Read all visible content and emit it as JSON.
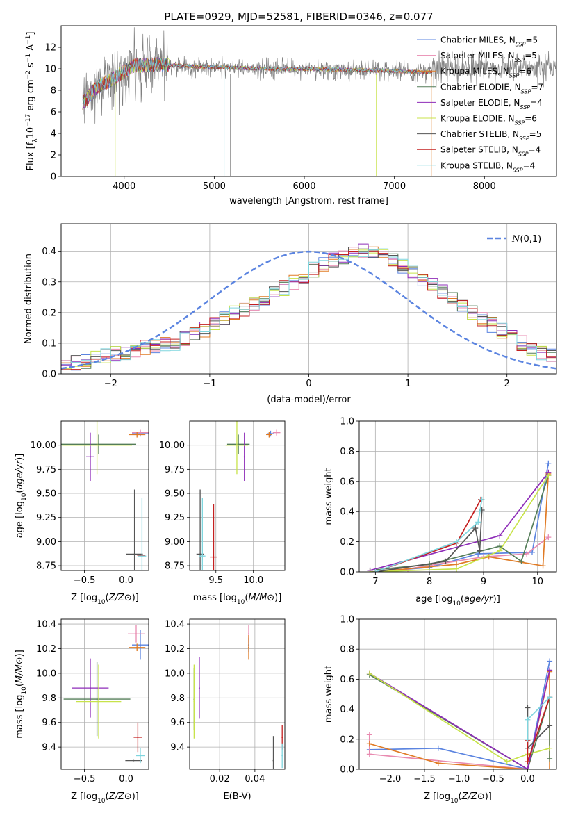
{
  "title": "PLATE=0929, MJD=52581, FIBERID=0346, z=0.077",
  "legend_names": [
    "Chabrier MILES, N_SSP=5",
    "Salpeter MILES, N_SSP=5",
    "Kroupa MILES, N_SSP=6",
    "Chabrier ELODIE, N_SSP=7",
    "Salpeter ELODIE, N_SSP=4",
    "Kroupa ELODIE, N_SSP=6",
    "Chabrier STELIB, N_SSP=5",
    "Salpeter STELIB, N_SSP=4",
    "Kroupa STELIB, N_SSP=4"
  ],
  "model_colors": [
    "#5b84e0",
    "#e88ab0",
    "#e07b25",
    "#547d58",
    "#8e2cb8",
    "#c8e34a",
    "#555555",
    "#c42020",
    "#7fd5de"
  ],
  "colors": {
    "data_line": "#808080",
    "grid": "#b0b0b0",
    "normal_curve": "#5b84e0"
  },
  "chart_data": [
    {
      "id": "spectrum",
      "type": "line",
      "xlabel": "wavelength [Angstrom, rest frame]",
      "ylabel": "Flux [f_λ 10^-17 erg cm^-2 s^-1 A^-1]",
      "xlim": [
        3300,
        8800
      ],
      "ylim": [
        0,
        14
      ],
      "xticks": [
        4000,
        5000,
        6000,
        7000,
        8000
      ],
      "yticks": [
        0,
        2,
        4,
        6,
        8,
        10,
        12
      ],
      "grid": false,
      "legend_position": "top-right",
      "continuum": {
        "x": [
          3540,
          3700,
          3900,
          4100,
          4400,
          4800,
          5200,
          5600,
          6000,
          6500,
          7000,
          7300,
          7420
        ],
        "y": [
          6.8,
          8.3,
          9.2,
          10.3,
          10.4,
          10.2,
          10.1,
          10.0,
          10.0,
          9.9,
          9.8,
          9.7,
          9.7
        ]
      },
      "noisy_region": [
        3540,
        4500
      ],
      "dropouts": [
        3900,
        5110,
        5180,
        6800,
        7410
      ]
    },
    {
      "id": "residuals",
      "type": "histogram",
      "xlabel": "(data-model)/error",
      "ylabel": "Normed distribution",
      "xlim": [
        -2.5,
        2.5
      ],
      "ylim": [
        0,
        0.49
      ],
      "xticks": [
        -2,
        -1,
        0,
        1,
        2
      ],
      "yticks": [
        0,
        0.1,
        0.2,
        0.3,
        0.4
      ],
      "grid": true,
      "legend_position": "top-right",
      "reference_label": "N(0,1)",
      "bin_width": 0.1,
      "base_values": [
        0.03,
        0.035,
        0.04,
        0.05,
        0.06,
        0.065,
        0.07,
        0.08,
        0.085,
        0.09,
        0.095,
        0.1,
        0.115,
        0.13,
        0.145,
        0.16,
        0.18,
        0.2,
        0.21,
        0.23,
        0.24,
        0.26,
        0.28,
        0.3,
        0.32,
        0.34,
        0.355,
        0.37,
        0.38,
        0.39,
        0.4,
        0.395,
        0.385,
        0.37,
        0.35,
        0.33,
        0.31,
        0.29,
        0.27,
        0.25,
        0.22,
        0.2,
        0.18,
        0.16,
        0.14,
        0.12,
        0.1,
        0.085,
        0.07,
        0.06
      ]
    },
    {
      "id": "age_vs_z",
      "type": "scatter",
      "xlabel": "Z [log10(Z/Z⊙)]",
      "ylabel": "age [log10(age/yr)]",
      "xlim": [
        -0.78,
        0.27
      ],
      "ylim": [
        8.7,
        10.25
      ],
      "xticks": [
        -0.5,
        0.0
      ],
      "yticks": [
        8.75,
        9.0,
        9.25,
        9.5,
        9.75,
        10.0
      ],
      "grid": true,
      "points": [
        {
          "x": 0.17,
          "y": 10.12,
          "xerr": 0.1,
          "yerr": 0.03
        },
        {
          "x": 0.17,
          "y": 10.13,
          "xerr": 0.1,
          "yerr": 0.03
        },
        {
          "x": 0.13,
          "y": 10.11,
          "xerr": 0.1,
          "yerr": 0.03
        },
        {
          "x": -0.33,
          "y": 10.01,
          "xerr": 0.45,
          "yerr": 0.1
        },
        {
          "x": -0.43,
          "y": 9.88,
          "xerr": 0.05,
          "yerr": 0.25
        },
        {
          "x": -0.35,
          "y": 10.0,
          "xerr": 0.42,
          "yerr": 0.3
        },
        {
          "x": 0.1,
          "y": 8.87,
          "xerr": 0.1,
          "yerr": 0.67
        },
        {
          "x": 0.18,
          "y": 8.86,
          "xerr": 0.05,
          "yerr": 0.0
        },
        {
          "x": 0.19,
          "y": 8.85,
          "xerr": 0.05,
          "yerr": 0.6
        }
      ]
    },
    {
      "id": "age_vs_mass",
      "type": "scatter",
      "xlabel": "mass [log10(M/M⊙)]",
      "ylabel": "",
      "xlim": [
        9.15,
        10.42
      ],
      "ylim": [
        8.7,
        10.25
      ],
      "xticks": [
        9.5,
        10.0
      ],
      "yticks": [
        8.75,
        9.0,
        9.25,
        9.5,
        9.75,
        10.0
      ],
      "grid": true,
      "points": [
        {
          "x": 10.23,
          "y": 10.12,
          "xerr": 0.04,
          "yerr": 0.03
        },
        {
          "x": 10.31,
          "y": 10.13,
          "xerr": 0.05,
          "yerr": 0.03
        },
        {
          "x": 10.21,
          "y": 10.11,
          "xerr": 0.04,
          "yerr": 0.03
        },
        {
          "x": 9.8,
          "y": 10.01,
          "xerr": 0.15,
          "yerr": 0.1
        },
        {
          "x": 9.88,
          "y": 9.88,
          "xerr": 0.0,
          "yerr": 0.25
        },
        {
          "x": 9.78,
          "y": 10.0,
          "xerr": 0.15,
          "yerr": 0.3
        },
        {
          "x": 9.29,
          "y": 8.87,
          "xerr": 0.05,
          "yerr": 0.67
        },
        {
          "x": 9.47,
          "y": 8.84,
          "xerr": 0.05,
          "yerr": 0.55
        },
        {
          "x": 9.32,
          "y": 8.85,
          "xerr": 0.04,
          "yerr": 0.6
        }
      ]
    },
    {
      "id": "mass_weight_vs_age",
      "type": "line",
      "xlabel": "age [log10(age/yr)]",
      "ylabel": "mass weight",
      "xlim": [
        6.7,
        10.35
      ],
      "ylim": [
        0,
        1
      ],
      "xticks": [
        7,
        8,
        9,
        10
      ],
      "yticks": [
        0,
        0.2,
        0.4,
        0.6,
        0.8,
        1.0
      ],
      "grid": true,
      "series": [
        {
          "x": [
            7.0,
            8.0,
            8.9,
            9.9,
            10.2
          ],
          "y": [
            0.0,
            0.03,
            0.12,
            0.13,
            0.72
          ]
        },
        {
          "x": [
            7.0,
            7.6,
            9.0,
            9.8,
            10.2
          ],
          "y": [
            0.0,
            0.02,
            0.1,
            0.12,
            0.23
          ]
        },
        {
          "x": [
            7.0,
            8.5,
            9.1,
            10.1,
            10.2
          ],
          "y": [
            0.0,
            0.05,
            0.1,
            0.04,
            0.65
          ]
        },
        {
          "x": [
            6.9,
            8.0,
            9.3,
            9.7,
            10.2
          ],
          "y": [
            0.01,
            0.05,
            0.17,
            0.07,
            0.64
          ]
        },
        {
          "x": [
            6.9,
            9.3,
            10.2
          ],
          "y": [
            0.01,
            0.24,
            0.66
          ]
        },
        {
          "x": [
            6.9,
            8.5,
            9.3,
            10.2
          ],
          "y": [
            0.0,
            0.02,
            0.14,
            0.64
          ]
        },
        {
          "x": [
            7.0,
            8.3,
            8.85,
            8.93,
            8.97
          ],
          "y": [
            0.0,
            0.07,
            0.29,
            0.14,
            0.41
          ]
        },
        {
          "x": [
            7.0,
            8.5,
            8.95
          ],
          "y": [
            0.0,
            0.19,
            0.48
          ]
        },
        {
          "x": [
            7.0,
            8.5,
            8.9,
            8.97
          ],
          "y": [
            0.0,
            0.2,
            0.33,
            0.48
          ]
        }
      ]
    },
    {
      "id": "mass_vs_z",
      "type": "scatter",
      "xlabel": "Z [log10(Z/Z⊙)]",
      "ylabel": "mass [log10(M/M⊙)]",
      "xlim": [
        -0.78,
        0.27
      ],
      "ylim": [
        9.22,
        10.44
      ],
      "xticks": [
        -0.5,
        0.0
      ],
      "yticks": [
        9.4,
        9.6,
        9.8,
        10.0,
        10.2,
        10.4
      ],
      "grid": true,
      "points": [
        {
          "x": 0.17,
          "y": 10.23,
          "xerr": 0.1,
          "yerr": 0.12
        },
        {
          "x": 0.12,
          "y": 10.32,
          "xerr": 0.1,
          "yerr": 0.07
        },
        {
          "x": 0.13,
          "y": 10.21,
          "xerr": 0.1,
          "yerr": 0.03
        },
        {
          "x": -0.35,
          "y": 9.79,
          "xerr": 0.4,
          "yerr": 0.3
        },
        {
          "x": -0.43,
          "y": 9.88,
          "xerr": 0.22,
          "yerr": 0.24
        },
        {
          "x": -0.33,
          "y": 9.77,
          "xerr": 0.27,
          "yerr": 0.3
        },
        {
          "x": 0.09,
          "y": 9.29,
          "xerr": 0.1,
          "yerr": 0.0
        },
        {
          "x": 0.14,
          "y": 9.48,
          "xerr": 0.05,
          "yerr": 0.12
        },
        {
          "x": 0.17,
          "y": 9.33,
          "xerr": 0.05,
          "yerr": 0.06
        }
      ]
    },
    {
      "id": "mass_vs_ebv",
      "type": "scatter",
      "xlabel": "E(B-V)",
      "ylabel": "",
      "xlim": [
        0.003,
        0.057
      ],
      "ylim": [
        9.22,
        10.44
      ],
      "xticks": [
        0.02,
        0.04
      ],
      "yticks": [
        9.4,
        9.6,
        9.8,
        10.0,
        10.2,
        10.4
      ],
      "grid": true,
      "points": [
        {
          "x": 0.0365,
          "y": 10.23,
          "xerr": 0,
          "yerr": 0.06
        },
        {
          "x": 0.0365,
          "y": 10.32,
          "xerr": 0,
          "yerr": 0.07
        },
        {
          "x": 0.0365,
          "y": 10.21,
          "xerr": 0,
          "yerr": 0.1
        },
        {
          "x": 0.0055,
          "y": 9.79,
          "xerr": 0,
          "yerr": 0.25
        },
        {
          "x": 0.0085,
          "y": 9.88,
          "xerr": 0,
          "yerr": 0.25
        },
        {
          "x": 0.0055,
          "y": 9.77,
          "xerr": 0,
          "yerr": 0.3
        },
        {
          "x": 0.0505,
          "y": 9.29,
          "xerr": 0,
          "yerr": 0.2
        },
        {
          "x": 0.0555,
          "y": 9.48,
          "xerr": 0,
          "yerr": 0.1
        },
        {
          "x": 0.0555,
          "y": 9.33,
          "xerr": 0,
          "yerr": 0.1
        }
      ]
    },
    {
      "id": "mass_weight_vs_z",
      "type": "line",
      "xlabel": "Z [log10(Z/Z⊙)]",
      "ylabel": "mass weight",
      "xlim": [
        -2.45,
        0.42
      ],
      "ylim": [
        0,
        1
      ],
      "xticks": [
        -2.0,
        -1.5,
        -1.0,
        -0.5,
        0.0
      ],
      "yticks": [
        0,
        0.2,
        0.4,
        0.6,
        0.8,
        1.0
      ],
      "grid": true,
      "series": [
        {
          "x": [
            -2.3,
            -1.3,
            0.0,
            0.32
          ],
          "y": [
            0.13,
            0.14,
            0.0,
            0.72
          ]
        },
        {
          "x": [
            -2.3,
            -2.3,
            0.0,
            0.32
          ],
          "y": [
            0.23,
            0.1,
            0.0,
            0.65
          ]
        },
        {
          "x": [
            -2.3,
            -1.3,
            0.0,
            0.32,
            0.32
          ],
          "y": [
            0.17,
            0.04,
            0.0,
            0.65,
            0.0
          ]
        },
        {
          "x": [
            -2.3,
            0.0,
            0.32,
            0.32
          ],
          "y": [
            0.63,
            0.0,
            0.48,
            0.07
          ]
        },
        {
          "x": [
            -2.3,
            0.0,
            0.32
          ],
          "y": [
            0.64,
            0.0,
            0.66
          ]
        },
        {
          "x": [
            -2.3,
            -0.3,
            0.0,
            0.32
          ],
          "y": [
            0.64,
            0.05,
            0.1,
            0.14
          ]
        },
        {
          "x": [
            0.0,
            0.0,
            0.32
          ],
          "y": [
            0.41,
            0.14,
            0.29
          ]
        },
        {
          "x": [
            0.0,
            0.0,
            0.32
          ],
          "y": [
            0.19,
            0.05,
            0.48
          ]
        },
        {
          "x": [
            0.0,
            0.0,
            0.32
          ],
          "y": [
            0.2,
            0.33,
            0.48
          ]
        }
      ]
    }
  ]
}
